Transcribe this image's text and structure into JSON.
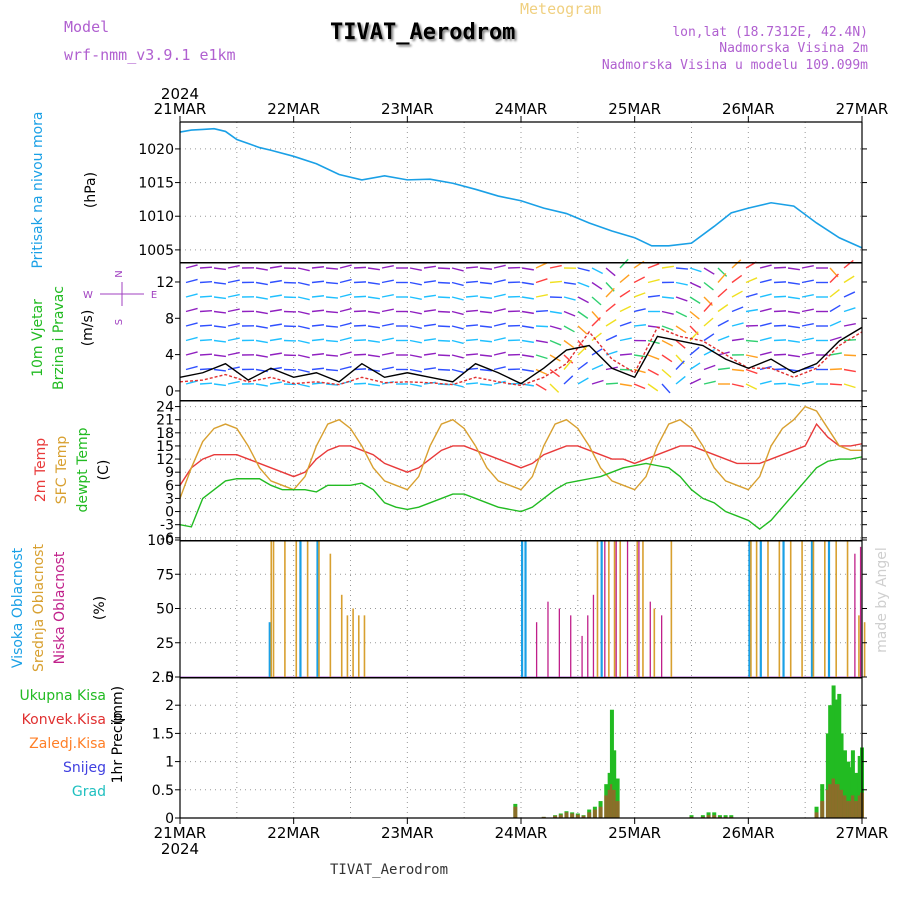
{
  "header": {
    "model_label": "Model",
    "model_name": "wrf-nmm_v3.9.1  e1km",
    "product": "Meteogram",
    "station_title": "TIVAT_Aerodrom",
    "lonlat": "lon,lat (18.7312E, 42.4N)",
    "altitude": "Nadmorska Visina 2m",
    "model_altitude": "Nadmorska Visina u modelu 109.099m",
    "watermark": "made by Angel",
    "footer": "TIVAT_Aerodrom"
  },
  "time_axis": {
    "year": "2024",
    "labels": [
      "21MAR",
      "22MAR",
      "23MAR",
      "24MAR",
      "25MAR",
      "26MAR",
      "27MAR"
    ]
  },
  "colors": {
    "pressure": "#1aa0e6",
    "wind_speed": "#000000",
    "wind_gust": "#e03030",
    "temp_2m": "#e83a3a",
    "temp_sfc": "#d8a030",
    "dewpoint": "#22bb22",
    "cloud_high": "#1aa0e6",
    "cloud_mid": "#d8a030",
    "cloud_low": "#c0208a",
    "precip_total": "#22bb22",
    "precip_conv": "#e03030",
    "precip_frz": "#ff7f27",
    "snow": "#4040e0",
    "hail": "#20c0c0"
  },
  "chart_data": [
    {
      "type": "line",
      "panel": "pressure",
      "ylabel": "Pritisak na nivou mora",
      "unit": "(hPa)",
      "ylim": [
        1003.2,
        1024
      ],
      "yticks": [
        1005,
        1010,
        1015,
        1020
      ],
      "grid": true,
      "x_days": [
        0,
        0.1,
        0.2,
        0.3,
        0.4,
        0.5,
        0.6,
        0.7,
        0.8,
        1.0,
        1.2,
        1.4,
        1.6,
        1.8,
        2.0,
        2.2,
        2.4,
        2.6,
        2.8,
        3.0,
        3.2,
        3.4,
        3.6,
        3.8,
        4.0,
        4.15,
        4.3,
        4.5,
        4.7,
        4.85,
        5.0,
        5.2,
        5.4,
        5.6,
        5.8,
        6.0
      ],
      "series": [
        {
          "values": [
            1022.5,
            1022.8,
            1022.9,
            1023.0,
            1022.6,
            1021.4,
            1020.8,
            1020.2,
            1019.8,
            1018.9,
            1017.8,
            1016.2,
            1015.4,
            1016.0,
            1015.4,
            1015.5,
            1014.9,
            1014.0,
            1013.0,
            1012.3,
            1011.2,
            1010.4,
            1009.0,
            1007.8,
            1006.8,
            1005.6,
            1005.6,
            1006.0,
            1008.5,
            1010.5,
            1011.2,
            1012.0,
            1011.5,
            1009.0,
            1006.8,
            1005.3
          ]
        }
      ]
    },
    {
      "type": "line",
      "panel": "wind",
      "ylabel": [
        "10m Vjetar",
        "Brzina i Pravac"
      ],
      "unit": "(m/s)",
      "direction_key": [
        "N",
        "E",
        "W",
        "S"
      ],
      "ylim": [
        -1,
        14.2
      ],
      "yticks": [
        0,
        4,
        8,
        12
      ],
      "x_days": [
        0,
        0.2,
        0.4,
        0.6,
        0.8,
        1.0,
        1.2,
        1.4,
        1.6,
        1.8,
        2.0,
        2.2,
        2.4,
        2.6,
        2.8,
        3.0,
        3.2,
        3.4,
        3.6,
        3.8,
        4.0,
        4.2,
        4.4,
        4.6,
        4.8,
        5.0,
        5.2,
        5.4,
        5.6,
        5.8,
        6.0
      ],
      "series": [
        {
          "name": "speed",
          "values": [
            1.5,
            2.0,
            3.0,
            1.2,
            2.5,
            1.5,
            2.0,
            1.0,
            3.0,
            1.5,
            2.0,
            1.5,
            1.0,
            3.0,
            2.0,
            0.8,
            2.5,
            4.5,
            5.0,
            2.5,
            1.5,
            6.0,
            5.5,
            5.0,
            3.5,
            2.5,
            3.5,
            2.0,
            3.0,
            5.5,
            7.0
          ]
        },
        {
          "name": "gust",
          "values": [
            1.0,
            1.2,
            1.8,
            1.0,
            1.5,
            0.8,
            1.0,
            0.7,
            1.5,
            0.9,
            1.0,
            0.9,
            0.7,
            1.5,
            1.0,
            0.6,
            1.5,
            3.0,
            6.5,
            3.5,
            2.0,
            7.0,
            6.0,
            5.5,
            4.0,
            2.5,
            2.5,
            1.5,
            2.5,
            5.0,
            6.5
          ]
        }
      ]
    },
    {
      "type": "line",
      "panel": "temperature",
      "unit": "(C)",
      "ylim": [
        -6.5,
        25.5
      ],
      "yticks": [
        -6,
        -3,
        0,
        3,
        6,
        9,
        12,
        15,
        18,
        21,
        24
      ],
      "x_days": [
        0,
        0.1,
        0.2,
        0.3,
        0.4,
        0.5,
        0.6,
        0.7,
        0.8,
        0.9,
        1.0,
        1.1,
        1.2,
        1.3,
        1.4,
        1.5,
        1.6,
        1.7,
        1.8,
        1.9,
        2.0,
        2.1,
        2.2,
        2.3,
        2.4,
        2.5,
        2.6,
        2.7,
        2.8,
        2.9,
        3.0,
        3.1,
        3.2,
        3.3,
        3.4,
        3.5,
        3.6,
        3.7,
        3.8,
        3.9,
        4.0,
        4.1,
        4.2,
        4.3,
        4.4,
        4.5,
        4.6,
        4.7,
        4.8,
        4.9,
        5.0,
        5.1,
        5.2,
        5.3,
        5.4,
        5.5,
        5.6,
        5.7,
        5.8,
        5.9,
        6.0
      ],
      "series": [
        {
          "name": "2m Temp",
          "values": [
            6,
            10,
            12,
            13,
            13,
            13,
            12,
            11,
            10,
            9,
            8,
            9,
            12,
            14,
            15,
            15,
            14,
            13,
            11,
            10,
            9,
            10,
            12,
            14,
            15,
            15,
            14,
            13,
            12,
            11,
            10,
            11,
            13,
            14,
            15,
            15,
            14,
            13,
            12,
            12,
            11,
            12,
            13,
            14,
            15,
            15,
            14,
            13,
            12,
            11,
            11,
            11,
            12,
            13,
            14,
            15,
            20,
            17,
            15,
            15,
            15.5
          ]
        },
        {
          "name": "SFC Temp",
          "values": [
            3,
            10,
            16,
            19,
            20,
            19,
            15,
            10,
            7,
            6,
            5,
            8,
            15,
            20,
            21,
            19,
            15,
            10,
            7,
            6,
            5,
            8,
            15,
            20,
            21,
            19,
            15,
            10,
            7,
            6,
            5,
            8,
            15,
            20,
            21,
            19,
            15,
            10,
            7,
            6,
            5,
            8,
            15,
            20,
            21,
            19,
            15,
            10,
            7,
            6,
            5,
            8,
            15,
            19,
            21,
            24,
            23,
            19,
            15,
            14,
            14
          ]
        },
        {
          "name": "dewpt Temp",
          "values": [
            -3,
            -3.5,
            3,
            5,
            7,
            7.5,
            7.5,
            7.5,
            6,
            5,
            5,
            5,
            4.5,
            6,
            6,
            6,
            6.5,
            5,
            2,
            1,
            0.5,
            1,
            2,
            3,
            4,
            4,
            3,
            2,
            1,
            0.5,
            0,
            1,
            3,
            5,
            6.5,
            7,
            7.5,
            8,
            9,
            10,
            10.5,
            11,
            10.5,
            10,
            8,
            5,
            3,
            2,
            0,
            -1,
            -2,
            -4,
            -2,
            1,
            4,
            7,
            10,
            11.5,
            12,
            12,
            12.5
          ]
        }
      ]
    },
    {
      "type": "bar",
      "panel": "clouds",
      "ylabel": [
        "Visoka Oblacnost",
        "Srednja Oblacnost",
        "Niska Oblacnost"
      ],
      "unit": "(%)",
      "ylim": [
        0,
        100
      ],
      "yticks": [
        0,
        25,
        50,
        75,
        100
      ],
      "series": [
        {
          "name": "Visoka Oblacnost",
          "x_days": [
            0.78,
            1.05,
            1.2,
            3.0,
            3.03,
            3.7,
            5.0,
            5.1,
            5.3,
            5.55,
            5.7
          ],
          "values": [
            40,
            100,
            100,
            100,
            100,
            100,
            100,
            100,
            100,
            100,
            100
          ]
        },
        {
          "name": "Srednja Oblacnost",
          "x_days": [
            0.78,
            0.8,
            0.9,
            1.0,
            1.1,
            1.2,
            1.3,
            1.4,
            1.45,
            1.5,
            1.55,
            1.6,
            3.65,
            3.75,
            3.8,
            3.85,
            4.0,
            4.05,
            4.15,
            4.3,
            5.0,
            5.05,
            5.15,
            5.25,
            5.35,
            5.45,
            5.55,
            5.65,
            5.75,
            5.85,
            5.95,
            6.0
          ],
          "values": [
            100,
            100,
            100,
            100,
            100,
            100,
            90,
            60,
            45,
            50,
            45,
            45,
            100,
            100,
            100,
            100,
            100,
            100,
            50,
            100,
            100,
            100,
            100,
            100,
            100,
            100,
            100,
            100,
            100,
            100,
            45,
            40
          ]
        },
        {
          "name": "Niska Oblacnost",
          "x_days": [
            3.1,
            3.2,
            3.3,
            3.4,
            3.5,
            3.55,
            3.6,
            3.7,
            3.8,
            3.9,
            4.0,
            4.1,
            4.2,
            5.9,
            5.95
          ],
          "values": [
            40,
            55,
            50,
            45,
            30,
            45,
            60,
            100,
            100,
            100,
            100,
            55,
            45,
            90,
            95
          ]
        }
      ]
    },
    {
      "type": "bar",
      "panel": "precipitation",
      "ylabel": "1hr Precip",
      "unit": "(mm)",
      "legend": [
        "Ukupna Kisa",
        "Konvek.Kisa",
        "Zaledj.Kisa",
        "Snijeg",
        "Grad"
      ],
      "ylim": [
        0,
        2.5
      ],
      "yticks": [
        0,
        0.5,
        1,
        1.5,
        2,
        2.5
      ],
      "x_days": [
        2.95,
        3.2,
        3.3,
        3.35,
        3.4,
        3.45,
        3.5,
        3.55,
        3.6,
        3.65,
        3.7,
        3.75,
        3.78,
        3.8,
        3.82,
        3.85,
        4.5,
        4.6,
        4.65,
        4.7,
        4.75,
        4.8,
        4.85,
        5.6,
        5.65,
        5.7,
        5.72,
        5.75,
        5.78,
        5.8,
        5.82,
        5.85,
        5.88,
        5.9,
        5.92,
        5.95,
        5.98,
        6.0
      ],
      "series": [
        {
          "name": "Ukupna Kisa",
          "values": [
            0.25,
            0.02,
            0.05,
            0.08,
            0.12,
            0.1,
            0.08,
            0.05,
            0.15,
            0.2,
            0.3,
            0.6,
            0.8,
            1.92,
            1.2,
            0.7,
            0.05,
            0.05,
            0.1,
            0.1,
            0.05,
            0.05,
            0.05,
            0.2,
            0.6,
            1.5,
            2.0,
            2.35,
            2.1,
            2.2,
            1.5,
            1.2,
            1.0,
            0.9,
            1.2,
            0.8,
            1.1,
            1.25
          ]
        },
        {
          "name": "Konvek.Kisa",
          "values": [
            0.2,
            0.02,
            0.04,
            0.06,
            0.1,
            0.08,
            0.06,
            0.04,
            0.1,
            0.15,
            0.2,
            0.4,
            0.5,
            0.6,
            0.5,
            0.3,
            0.02,
            0.02,
            0.05,
            0.05,
            0.02,
            0.02,
            0.02,
            0.1,
            0.3,
            0.5,
            0.6,
            0.7,
            0.6,
            0.6,
            0.5,
            0.4,
            0.3,
            0.3,
            0.4,
            0.3,
            0.4,
            0.45
          ]
        }
      ]
    }
  ]
}
